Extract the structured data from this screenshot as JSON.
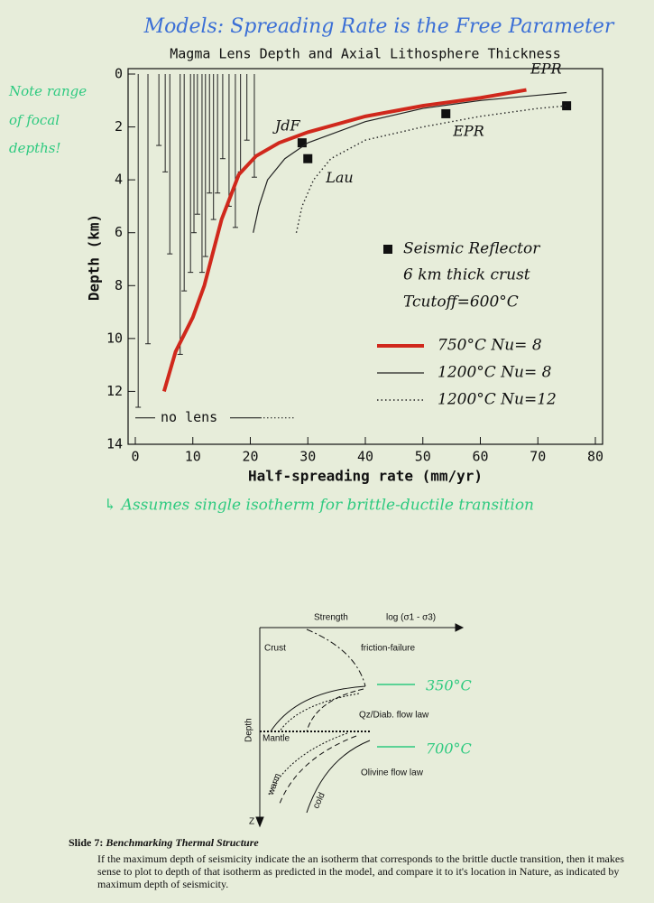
{
  "header": {
    "note": "Models: Spreading Rate is the Free Parameter"
  },
  "chart_data": {
    "type": "line",
    "title": "Magma Lens Depth and Axial Lithosphere Thickness",
    "x_label": "Half-spreading rate (mm/yr)",
    "y_label": "Depth (km)",
    "xlim": [
      0,
      80
    ],
    "xticks": [
      0,
      10,
      20,
      30,
      40,
      50,
      60,
      70,
      80
    ],
    "ylim": [
      0,
      14
    ],
    "yticks": [
      0,
      2,
      4,
      6,
      8,
      10,
      12,
      14
    ],
    "y_inverted": true,
    "grid": false,
    "series": [
      {
        "name": "Seismic Reflector",
        "color": "#111111",
        "marker": "square",
        "x": [
          29,
          30,
          54,
          75
        ],
        "y": [
          2.6,
          3.2,
          1.5,
          1.2
        ],
        "point_labels": [
          "JdF",
          "Lau",
          "EPR",
          "EPR"
        ]
      },
      {
        "name": "750°C Nu= 8",
        "color": "#d0281c",
        "line_style": "thick",
        "x": [
          5,
          7,
          10,
          12,
          15,
          18,
          21,
          25,
          30,
          40,
          50,
          60,
          68
        ],
        "y": [
          12,
          10.5,
          9.2,
          8,
          5.5,
          3.8,
          3.1,
          2.6,
          2.2,
          1.6,
          1.2,
          0.9,
          0.6
        ]
      },
      {
        "name": "1200°C Nu= 8",
        "color": "#222222",
        "line_style": "solid",
        "x": [
          20.5,
          21.5,
          23,
          26,
          30,
          40,
          50,
          60,
          70,
          75
        ],
        "y": [
          6,
          5,
          4,
          3.2,
          2.6,
          1.8,
          1.3,
          1,
          0.8,
          0.7
        ]
      },
      {
        "name": "1200°C Nu=12",
        "color": "#222222",
        "line_style": "dotted",
        "x": [
          28,
          29,
          31,
          34,
          40,
          50,
          60,
          70,
          75
        ],
        "y": [
          6,
          5,
          4,
          3.2,
          2.5,
          2,
          1.6,
          1.3,
          1.2
        ]
      }
    ],
    "notes": [
      "6 km thick crust",
      "Tcutoff=600°C"
    ],
    "range_bars": {
      "x": [
        0.5,
        2.2,
        4.1,
        5.2,
        6,
        7.8,
        8.5,
        9.6,
        10.2,
        10.8,
        11.6,
        12.2,
        12.9,
        13.6,
        14.3,
        15.2,
        16.3,
        17.4,
        18.3,
        19.4,
        20.7
      ],
      "y": [
        12.6,
        10.2,
        2.7,
        3.7,
        6.8,
        10.6,
        8.2,
        7.5,
        6,
        5.3,
        7.5,
        6.9,
        4.5,
        5.5,
        4.5,
        3.2,
        5,
        5.8,
        3.7,
        2.5,
        3.9
      ]
    },
    "no_lens": {
      "label": "no lens",
      "y": 13
    }
  },
  "annotations": {
    "focal_note": [
      "Note range",
      "of focal",
      "depths!"
    ],
    "isotherm_note": "↳ Assumes single isotherm for brittle-ductile transition"
  },
  "diagram": {
    "strength": "Strength",
    "axis": "log (σ1 - σ3)",
    "friction": "friction-failure",
    "crust": "Crust",
    "qz": "Qz/Diab. flow law",
    "mantle": "Mantle",
    "olivine": "Olivine flow law",
    "depth": "Depth",
    "z": "Z",
    "warm": "warm",
    "cold": "cold",
    "t1": "350°C",
    "t2": "700°C"
  },
  "caption": {
    "label": "Slide 7:",
    "title": "Benchmarking Thermal Structure",
    "text": "If the maximum depth of seismicity indicate the an isotherm that corresponds to the brittle ductle transition, then it makes sense to plot to depth of that isotherm as predicted in the model, and compare it to it's location in Nature, as indicated by maximum depth of seismicity."
  }
}
